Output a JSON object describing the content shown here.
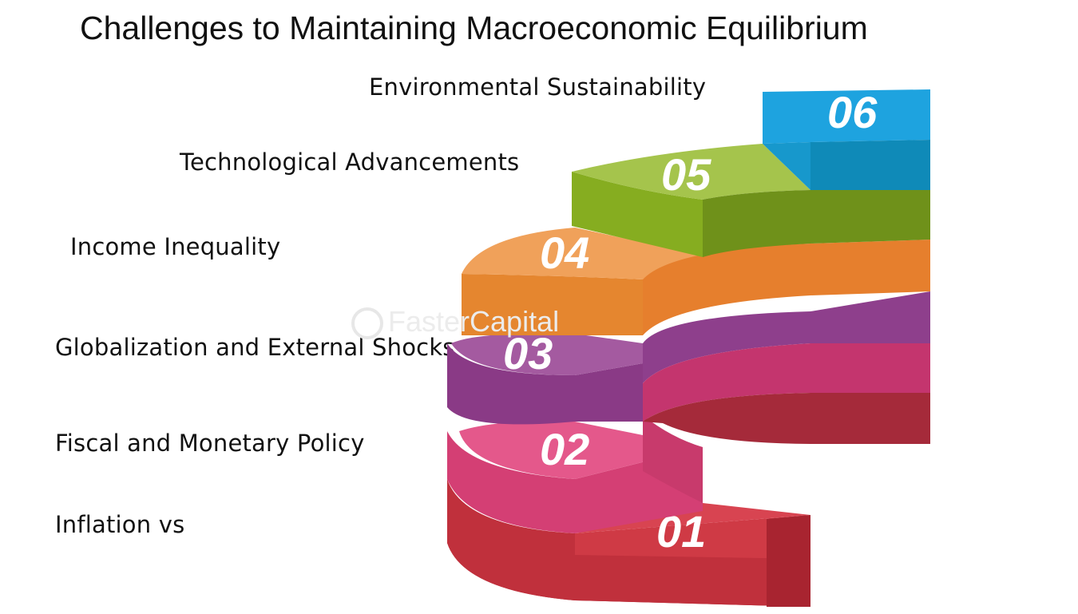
{
  "title": "Challenges to Maintaining Macroeconomic Equilibrium",
  "watermark": "FasterCapital",
  "steps": [
    {
      "number": "01",
      "label": "Inflation vs",
      "color": "#c0303c"
    },
    {
      "number": "02",
      "label": "Fiscal and Monetary Policy",
      "color": "#d94a7e"
    },
    {
      "number": "03",
      "label": "Globalization and External Shocks",
      "color": "#8e3f8c"
    },
    {
      "number": "04",
      "label": "Income Inequality",
      "color": "#e9822f"
    },
    {
      "number": "05",
      "label": "Technological Advancements",
      "color": "#84ad26"
    },
    {
      "number": "06",
      "label": "Environmental Sustainability",
      "color": "#1d9fd8"
    }
  ]
}
